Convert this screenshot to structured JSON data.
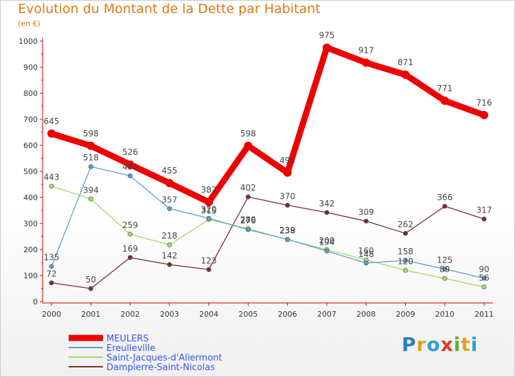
{
  "title": "Evolution du Montant de la Dette par Habitant",
  "subtitle": "(en €)",
  "logo_text": "Proxiti",
  "chart_data": {
    "type": "line",
    "title": "Evolution du Montant de la Dette par Habitant",
    "ylabel": "(en €)",
    "xlabel": "",
    "ylim": [
      0,
      1000
    ],
    "yticks": [
      0,
      100,
      200,
      300,
      400,
      500,
      600,
      700,
      800,
      900,
      1000
    ],
    "categories": [
      "2000",
      "2001",
      "2002",
      "2003",
      "2004",
      "2005",
      "2006",
      "2007",
      "2008",
      "2009",
      "2010",
      "2011"
    ],
    "grid": false,
    "legend_position": "bottom-left",
    "series": [
      {
        "name": "MEULERS",
        "color": "#ee0000",
        "values": [
          645,
          598,
          526,
          455,
          382,
          598,
          495,
          975,
          917,
          871,
          771,
          716
        ]
      },
      {
        "name": "Ereulleville",
        "color": "#5b9bd5",
        "values": [
          135,
          518,
          483,
          357,
          320,
          276,
          239,
          194,
          148,
          158,
          125,
          90
        ]
      },
      {
        "name": "Saint-Jacques-d'Aliermont",
        "color": "#99dd66",
        "values": [
          443,
          394,
          259,
          218,
          315,
          280,
          238,
          200,
          160,
          120,
          89,
          56
        ]
      },
      {
        "name": "Dampierre-Saint-Nicolas",
        "color": "#7b2a2a",
        "values": [
          72,
          50,
          169,
          142,
          123,
          402,
          370,
          342,
          309,
          262,
          366,
          317
        ]
      }
    ]
  }
}
